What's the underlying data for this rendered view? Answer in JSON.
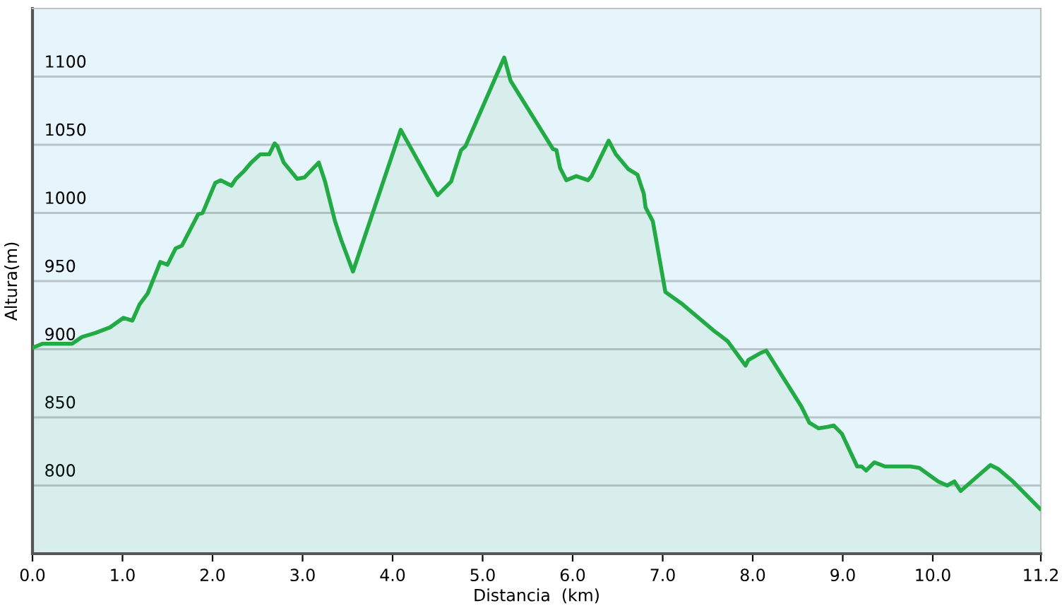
{
  "chart_data": {
    "type": "area",
    "xlabel": "Distancia  (km)",
    "ylabel": "Altura(m)",
    "xlim": [
      0,
      11.2
    ],
    "ylim": [
      750,
      1150
    ],
    "xticks": [
      {
        "value": 0,
        "label": "0.0"
      },
      {
        "value": 1,
        "label": "1.0"
      },
      {
        "value": 2,
        "label": "2.0"
      },
      {
        "value": 3,
        "label": "3.0"
      },
      {
        "value": 4,
        "label": "4.0"
      },
      {
        "value": 5,
        "label": "5.0"
      },
      {
        "value": 6,
        "label": "6.0"
      },
      {
        "value": 7,
        "label": "7.0"
      },
      {
        "value": 8,
        "label": "8.0"
      },
      {
        "value": 9,
        "label": "9.0"
      },
      {
        "value": 10,
        "label": "10.0"
      },
      {
        "value": 11.2,
        "label": "11.2"
      }
    ],
    "yticks": [
      800,
      850,
      900,
      950,
      1000,
      1050,
      1100
    ],
    "grid": "y",
    "series": [
      {
        "color": "#22aa44",
        "x": [
          0.0,
          0.11,
          0.44,
          0.55,
          0.7,
          0.86,
          1.01,
          1.11,
          1.19,
          1.28,
          1.42,
          1.5,
          1.59,
          1.66,
          1.84,
          1.89,
          2.03,
          2.09,
          2.21,
          2.26,
          2.34,
          2.43,
          2.53,
          2.63,
          2.69,
          2.72,
          2.79,
          2.94,
          3.02,
          3.18,
          3.25,
          3.36,
          3.43,
          3.56,
          4.09,
          4.41,
          4.5,
          4.65,
          4.76,
          4.81,
          5.24,
          5.31,
          5.78,
          5.82,
          5.86,
          5.93,
          6.04,
          6.17,
          6.21,
          6.29,
          6.4,
          6.48,
          6.62,
          6.72,
          6.79,
          6.81,
          6.89,
          7.03,
          7.22,
          7.56,
          7.72,
          7.92,
          7.95,
          8.08,
          8.15,
          8.54,
          8.63,
          8.73,
          8.83,
          8.9,
          8.99,
          9.16,
          9.21,
          9.26,
          9.35,
          9.47,
          9.75,
          9.85,
          10.06,
          10.16,
          10.24,
          10.31,
          10.5,
          10.64,
          10.73,
          10.89,
          11.19
        ],
        "values": [
          901,
          904,
          904,
          909,
          912,
          916,
          923,
          921,
          933,
          941,
          964,
          962,
          974,
          976,
          999,
          1000,
          1022,
          1024,
          1020,
          1025,
          1030,
          1037,
          1043,
          1043,
          1051,
          1049,
          1037,
          1025,
          1026,
          1037,
          1023,
          994,
          980,
          957,
          1061,
          1023,
          1013,
          1023,
          1046,
          1049,
          1114,
          1097,
          1047,
          1046,
          1033,
          1024,
          1027,
          1024,
          1027,
          1038,
          1053,
          1043,
          1032,
          1028,
          1014,
          1004,
          994,
          942,
          933,
          914,
          906,
          888,
          892,
          897,
          899,
          858,
          846,
          842,
          843,
          844,
          838,
          814,
          814,
          811,
          817,
          814,
          814,
          813,
          803,
          800,
          803,
          796,
          807,
          815,
          812,
          803,
          783
        ]
      }
    ]
  }
}
